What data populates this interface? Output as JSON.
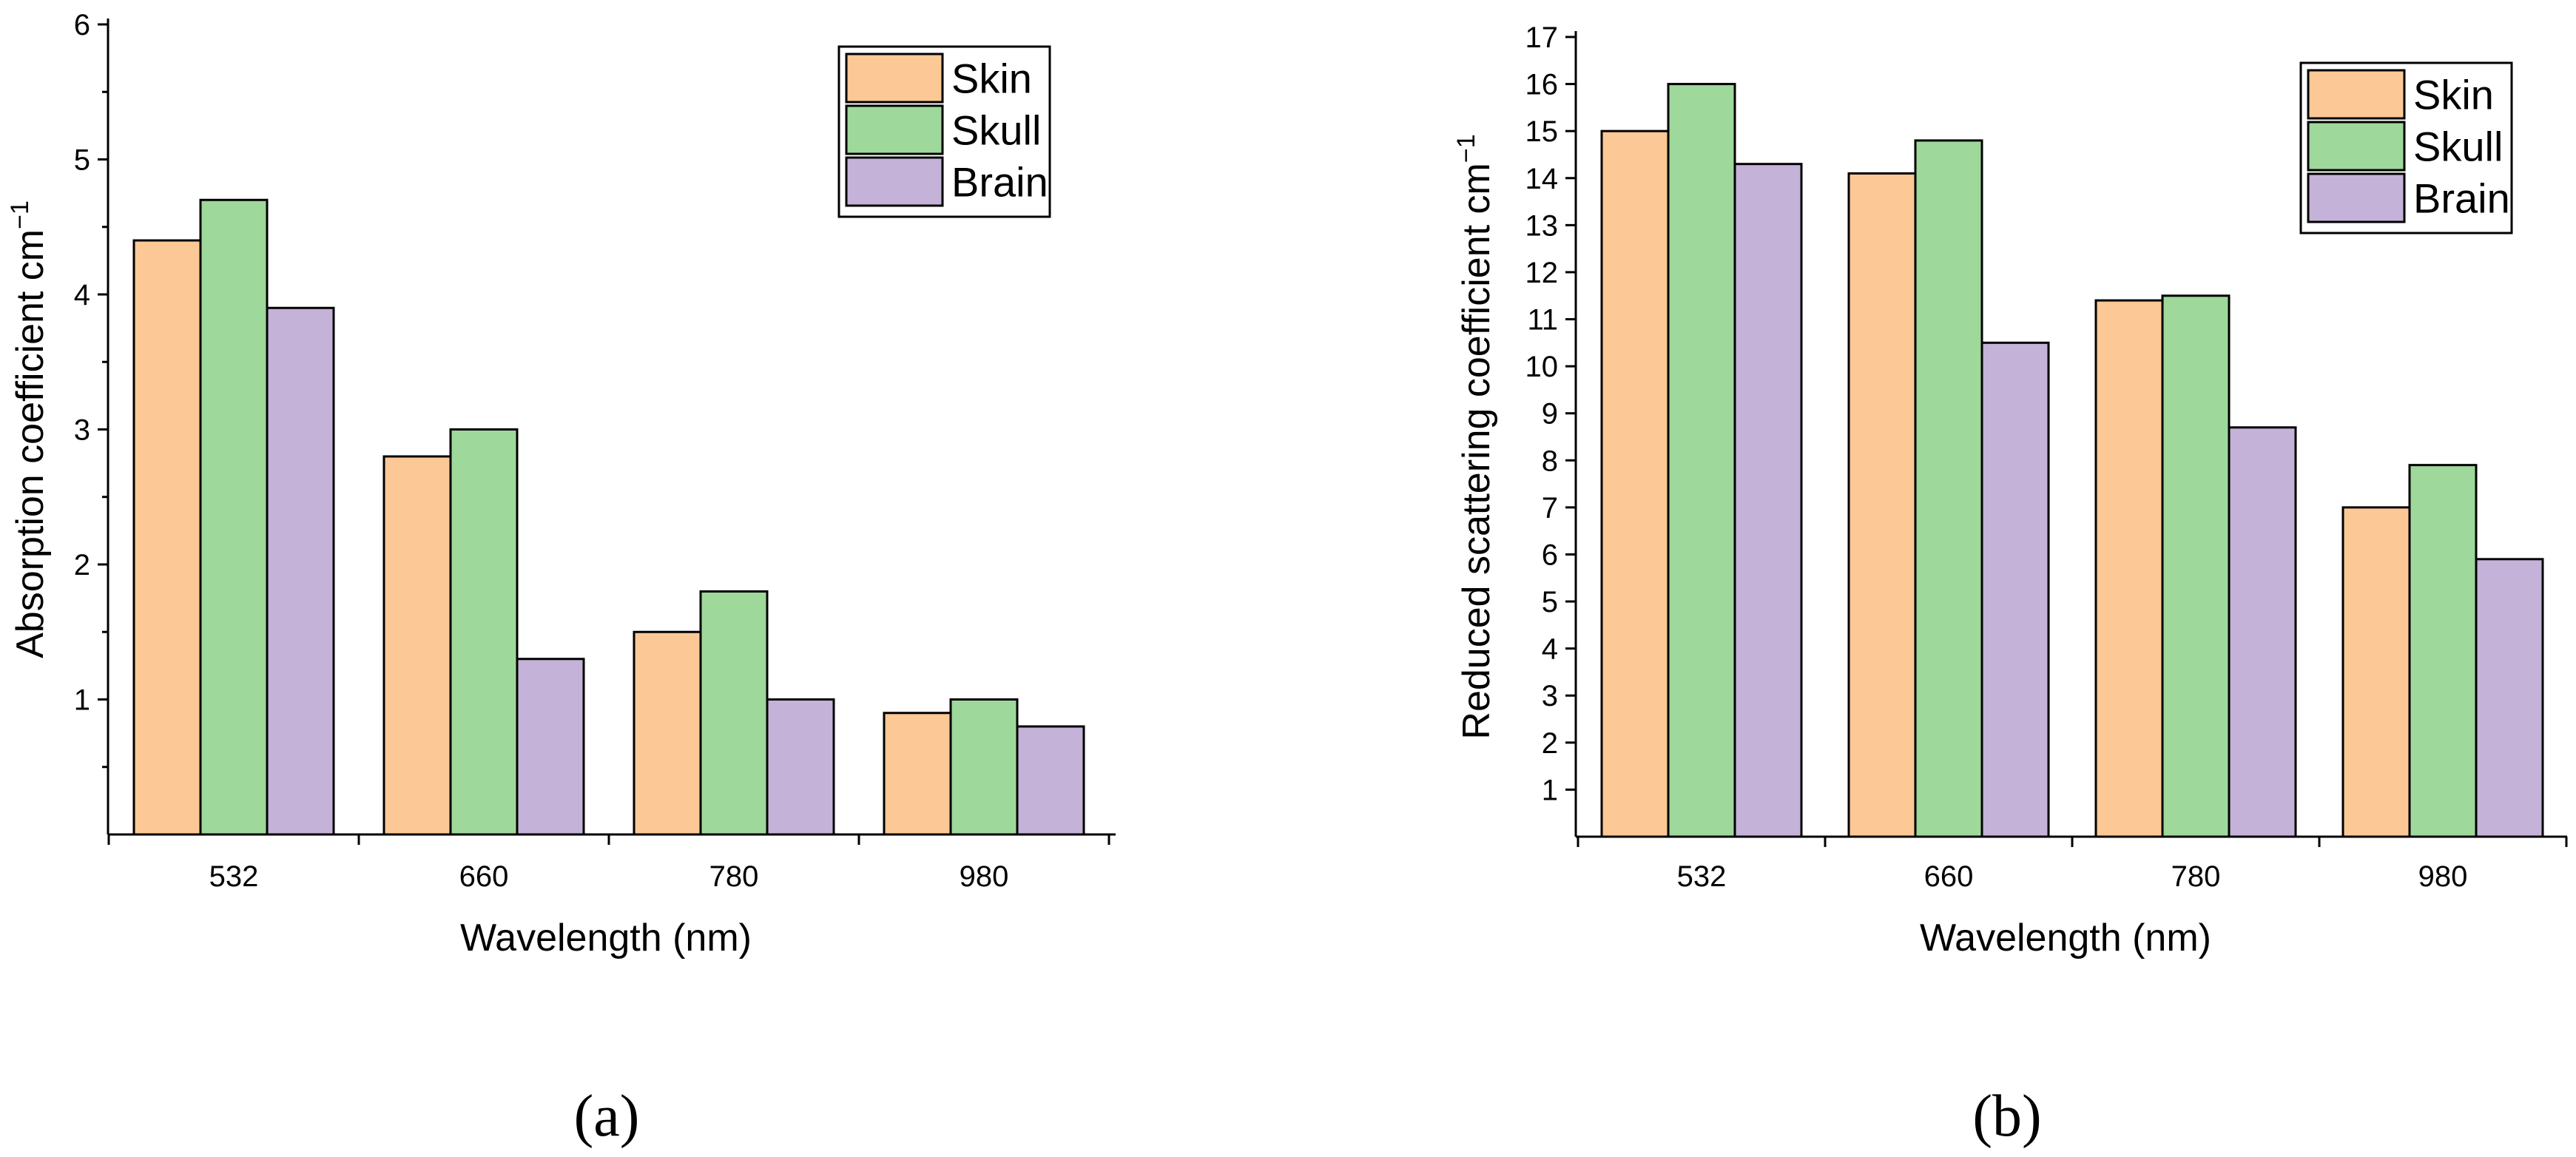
{
  "chart_data": [
    {
      "type": "bar",
      "panel_label": "(a)",
      "title": "",
      "xlabel": "Wavelength (nm)",
      "ylabel": "Absorption coefficient cm",
      "ylabel_sup": "−1",
      "categories": [
        "532",
        "660",
        "780",
        "980"
      ],
      "ylim": [
        0,
        6
      ],
      "yticks": [
        "1",
        "2",
        "3",
        "4",
        "5",
        "6"
      ],
      "legend_position": "top-right",
      "series": [
        {
          "name": "Skin",
          "color": "#FBC896",
          "values": [
            4.4,
            2.8,
            1.5,
            0.9
          ]
        },
        {
          "name": "Skull",
          "color": "#9ED89A",
          "values": [
            4.7,
            3.0,
            1.8,
            1.0
          ]
        },
        {
          "name": "Brain",
          "color": "#C4B2D8",
          "values": [
            3.9,
            1.3,
            1.0,
            0.8
          ]
        }
      ]
    },
    {
      "type": "bar",
      "panel_label": "(b)",
      "title": "",
      "xlabel": "Wavelength (nm)",
      "ylabel": "Reduced scattering coefficient cm",
      "ylabel_sup": "−1",
      "categories": [
        "532",
        "660",
        "780",
        "980"
      ],
      "ylim": [
        0,
        17
      ],
      "yticks": [
        "1",
        "2",
        "3",
        "4",
        "5",
        "6",
        "7",
        "8",
        "9",
        "10",
        "11",
        "12",
        "13",
        "14",
        "15",
        "16",
        "17"
      ],
      "legend_position": "top-right",
      "series": [
        {
          "name": "Skin",
          "color": "#FBC896",
          "values": [
            15.0,
            14.1,
            11.4,
            7.0
          ]
        },
        {
          "name": "Skull",
          "color": "#9ED89A",
          "values": [
            16.0,
            14.8,
            11.5,
            7.9
          ]
        },
        {
          "name": "Brain",
          "color": "#C4B2D8",
          "values": [
            14.3,
            10.5,
            8.7,
            5.9
          ]
        }
      ]
    }
  ]
}
